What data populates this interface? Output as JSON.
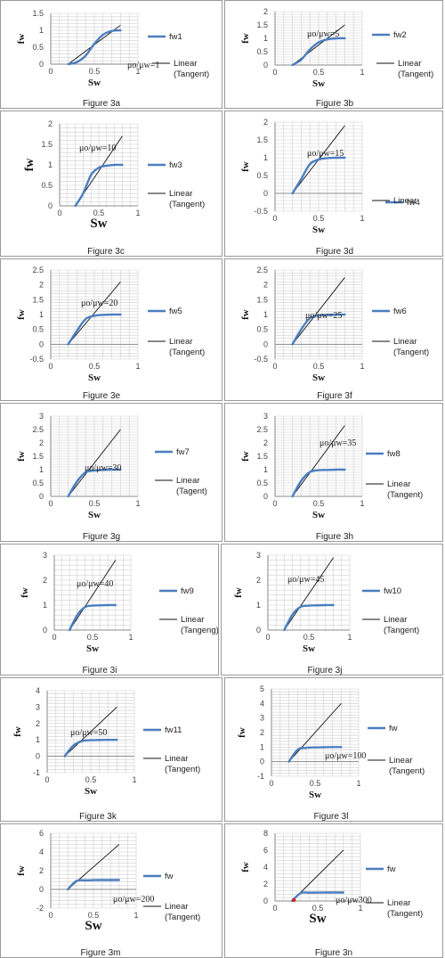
{
  "chart_data": [
    {
      "type": "line",
      "figure": "Figure 3a",
      "ratio_label": "μo/μw=1",
      "xlabel": "Sw",
      "ylabel": "fw",
      "xlim": [
        0,
        1
      ],
      "ylim": [
        0,
        1.5
      ],
      "xticks": [
        0,
        0.5,
        1
      ],
      "yticks": [
        0,
        0.5,
        1,
        1.5
      ],
      "series": [
        {
          "name": "fw1",
          "x": [
            0.2,
            0.3,
            0.4,
            0.5,
            0.6,
            0.7,
            0.8
          ],
          "y": [
            0,
            0.06,
            0.25,
            0.6,
            0.87,
            0.98,
            1.0
          ]
        },
        {
          "name": "Linear (Tangent)",
          "x": [
            0.2,
            0.8
          ],
          "y": [
            0,
            1.15
          ]
        }
      ]
    },
    {
      "type": "line",
      "figure": "Figure 3b",
      "ratio_label": "μo/μw=5",
      "xlabel": "Sw",
      "ylabel": "fw",
      "xlim": [
        0,
        1
      ],
      "ylim": [
        0,
        2
      ],
      "xticks": [
        0,
        0.5,
        1
      ],
      "yticks": [
        0,
        0.5,
        1,
        1.5,
        2
      ],
      "series": [
        {
          "name": "fw2",
          "x": [
            0.2,
            0.3,
            0.4,
            0.5,
            0.6,
            0.7,
            0.8
          ],
          "y": [
            0,
            0.2,
            0.58,
            0.85,
            0.96,
            1.0,
            1.0
          ]
        },
        {
          "name": "Linear (Tangent)",
          "x": [
            0.2,
            0.8
          ],
          "y": [
            0,
            1.5
          ]
        }
      ]
    },
    {
      "type": "line",
      "figure": "Figure 3c",
      "ratio_label": "μo/μw=10",
      "xlabel": "Sw",
      "ylabel": "fw",
      "xlim": [
        0,
        1
      ],
      "ylim": [
        0,
        2
      ],
      "xticks": [
        0,
        0.5,
        1
      ],
      "yticks": [
        0,
        0.5,
        1,
        1.5,
        2
      ],
      "series": [
        {
          "name": "fw3",
          "x": [
            0.2,
            0.3,
            0.4,
            0.5,
            0.6,
            0.7,
            0.8
          ],
          "y": [
            0,
            0.3,
            0.75,
            0.93,
            0.98,
            1.0,
            1.0
          ]
        },
        {
          "name": "Linear (Tangent)",
          "x": [
            0.2,
            0.8
          ],
          "y": [
            0,
            1.7
          ]
        }
      ]
    },
    {
      "type": "line",
      "figure": "Figure 3d",
      "ratio_label": "μo/μw=15",
      "xlabel": "Sw",
      "ylabel": "fw",
      "xlim": [
        0,
        1
      ],
      "ylim": [
        -0.5,
        2
      ],
      "xticks": [
        0,
        0.5,
        1
      ],
      "yticks": [
        -0.5,
        0,
        0.5,
        1,
        1.5,
        2
      ],
      "series": [
        {
          "name": "fw4",
          "x": [
            0.2,
            0.3,
            0.4,
            0.5,
            0.6,
            0.7,
            0.8
          ],
          "y": [
            0,
            0.4,
            0.82,
            0.95,
            0.99,
            1.0,
            1.0
          ]
        },
        {
          "name": "Linear",
          "x": [
            0.2,
            0.8
          ],
          "y": [
            0,
            1.9
          ]
        }
      ]
    },
    {
      "type": "line",
      "figure": "Figure 3e",
      "ratio_label": "μo/μw=20",
      "xlabel": "Sw",
      "ylabel": "fw",
      "xlim": [
        0,
        1
      ],
      "ylim": [
        -0.5,
        2.5
      ],
      "xticks": [
        0,
        0.5,
        1
      ],
      "yticks": [
        -0.5,
        0,
        0.5,
        1,
        1.5,
        2,
        2.5
      ],
      "series": [
        {
          "name": "fw5",
          "x": [
            0.2,
            0.3,
            0.4,
            0.5,
            0.6,
            0.7,
            0.8
          ],
          "y": [
            0,
            0.45,
            0.85,
            0.96,
            0.99,
            1.0,
            1.0
          ]
        },
        {
          "name": "Linear (Tangent)",
          "x": [
            0.2,
            0.8
          ],
          "y": [
            0,
            2.1
          ]
        }
      ]
    },
    {
      "type": "line",
      "figure": "Figure 3f",
      "ratio_label": "μo/μw=25",
      "xlabel": "Sw",
      "ylabel": "fw",
      "xlim": [
        0,
        1
      ],
      "ylim": [
        -0.5,
        2.5
      ],
      "xticks": [
        0,
        0.5,
        1
      ],
      "yticks": [
        -0.5,
        0,
        0.5,
        1,
        1.5,
        2,
        2.5
      ],
      "series": [
        {
          "name": "fw6",
          "x": [
            0.2,
            0.3,
            0.4,
            0.5,
            0.6,
            0.7,
            0.8
          ],
          "y": [
            0,
            0.5,
            0.88,
            0.97,
            0.99,
            1.0,
            1.0
          ]
        },
        {
          "name": "Linear (Tangent)",
          "x": [
            0.2,
            0.8
          ],
          "y": [
            0,
            2.25
          ]
        }
      ]
    },
    {
      "type": "line",
      "figure": "Figure 3g",
      "ratio_label": "μo/μw=30",
      "xlabel": "Sw",
      "ylabel": "fw",
      "xlim": [
        0,
        1
      ],
      "ylim": [
        0,
        3
      ],
      "xticks": [
        0,
        0.5,
        1
      ],
      "yticks": [
        0,
        0.5,
        1,
        1.5,
        2,
        2.5,
        3
      ],
      "series": [
        {
          "name": "fw7",
          "x": [
            0.2,
            0.3,
            0.4,
            0.5,
            0.6,
            0.7,
            0.8
          ],
          "y": [
            0,
            0.55,
            0.9,
            0.97,
            0.99,
            1.0,
            1.0
          ]
        },
        {
          "name": "Linear (Tagent)",
          "x": [
            0.2,
            0.8
          ],
          "y": [
            0,
            2.5
          ]
        }
      ]
    },
    {
      "type": "line",
      "figure": "Figure 3h",
      "ratio_label": "μo/μw=35",
      "xlabel": "Sw",
      "ylabel": "fw",
      "xlim": [
        0,
        1
      ],
      "ylim": [
        0,
        3
      ],
      "xticks": [
        0,
        0.5,
        1
      ],
      "yticks": [
        0,
        0.5,
        1,
        1.5,
        2,
        2.5,
        3
      ],
      "series": [
        {
          "name": "fw8",
          "x": [
            0.2,
            0.3,
            0.4,
            0.5,
            0.6,
            0.7,
            0.8
          ],
          "y": [
            0,
            0.58,
            0.91,
            0.98,
            0.99,
            1.0,
            1.0
          ]
        },
        {
          "name": "Linear (Tangent)",
          "x": [
            0.2,
            0.8
          ],
          "y": [
            0,
            2.65
          ]
        }
      ]
    },
    {
      "type": "line",
      "figure": "Figure 3i",
      "ratio_label": "μo/μw=40",
      "xlabel": "Sw",
      "ylabel": "fw",
      "xlim": [
        0,
        1
      ],
      "ylim": [
        0,
        3
      ],
      "xticks": [
        0,
        0.5,
        1
      ],
      "yticks": [
        0,
        1,
        2,
        3
      ],
      "series": [
        {
          "name": "fw9",
          "x": [
            0.2,
            0.3,
            0.4,
            0.5,
            0.6,
            0.7,
            0.8
          ],
          "y": [
            0,
            0.6,
            0.92,
            0.98,
            0.99,
            1.0,
            1.0
          ]
        },
        {
          "name": "Linear (Tangeng)",
          "x": [
            0.2,
            0.8
          ],
          "y": [
            0,
            2.8
          ]
        }
      ]
    },
    {
      "type": "line",
      "figure": "Figure 3j",
      "ratio_label": "μo/μw=45",
      "xlabel": "Sw",
      "ylabel": "fw",
      "xlim": [
        0,
        1
      ],
      "ylim": [
        0,
        3
      ],
      "xticks": [
        0,
        0.5,
        1
      ],
      "yticks": [
        0,
        1,
        2,
        3
      ],
      "series": [
        {
          "name": "fw10",
          "x": [
            0.2,
            0.3,
            0.4,
            0.5,
            0.6,
            0.7,
            0.8
          ],
          "y": [
            0,
            0.62,
            0.93,
            0.98,
            0.99,
            1.0,
            1.0
          ]
        },
        {
          "name": "Linear (Tangent)",
          "x": [
            0.2,
            0.8
          ],
          "y": [
            0,
            2.9
          ]
        }
      ]
    },
    {
      "type": "line",
      "figure": "Figure 3k",
      "ratio_label": "μo/μw=50",
      "xlabel": "Sw",
      "ylabel": "fw",
      "xlim": [
        0,
        1
      ],
      "ylim": [
        -1,
        4
      ],
      "xticks": [
        0,
        0.5,
        1
      ],
      "yticks": [
        -1,
        0,
        1,
        2,
        3,
        4
      ],
      "series": [
        {
          "name": "fw11",
          "x": [
            0.2,
            0.3,
            0.4,
            0.5,
            0.6,
            0.7,
            0.8
          ],
          "y": [
            0,
            0.65,
            0.93,
            0.98,
            0.99,
            1.0,
            1.0
          ]
        },
        {
          "name": "Linear (Tangent)",
          "x": [
            0.2,
            0.8
          ],
          "y": [
            0,
            3.0
          ]
        }
      ]
    },
    {
      "type": "line",
      "figure": "Figure 3l",
      "ratio_label": "μo/μw=100",
      "xlabel": "Sw",
      "ylabel": "fw",
      "xlim": [
        0,
        1
      ],
      "ylim": [
        -1,
        5
      ],
      "xticks": [
        0,
        0.5,
        1
      ],
      "yticks": [
        -1,
        0,
        1,
        2,
        3,
        4,
        5
      ],
      "series": [
        {
          "name": "fw",
          "x": [
            0.2,
            0.3,
            0.4,
            0.5,
            0.6,
            0.7,
            0.8
          ],
          "y": [
            0,
            0.82,
            0.95,
            0.98,
            0.99,
            1.0,
            1.0
          ]
        },
        {
          "name": "Linear (Tangent)",
          "x": [
            0.2,
            0.8
          ],
          "y": [
            0,
            4.0
          ]
        }
      ]
    },
    {
      "type": "line",
      "figure": "Figure 3m",
      "ratio_label": "μo/μw=200",
      "xlabel": "Sw",
      "ylabel": "fw",
      "xlim": [
        0,
        1
      ],
      "ylim": [
        -2,
        6
      ],
      "xticks": [
        0,
        0.5,
        1
      ],
      "yticks": [
        -2,
        0,
        2,
        4,
        6
      ],
      "series": [
        {
          "name": "fw",
          "x": [
            0.2,
            0.3,
            0.4,
            0.5,
            0.6,
            0.7,
            0.8
          ],
          "y": [
            0,
            0.9,
            0.97,
            0.99,
            1.0,
            1.0,
            1.0
          ]
        },
        {
          "name": "Linear (Tangent)",
          "x": [
            0.2,
            0.8
          ],
          "y": [
            0,
            4.8
          ]
        }
      ]
    },
    {
      "type": "line",
      "figure": "Figure 3n",
      "ratio_label": "μo/μw300",
      "xlabel": "Sw",
      "ylabel": "fw",
      "xlim": [
        0,
        1
      ],
      "ylim": [
        0,
        8
      ],
      "xticks": [
        0,
        0.5,
        1
      ],
      "yticks": [
        0,
        2,
        4,
        6,
        8
      ],
      "series": [
        {
          "name": "fw",
          "x": [
            0.2,
            0.3,
            0.4,
            0.5,
            0.6,
            0.7,
            0.8
          ],
          "y": [
            0,
            0.93,
            0.98,
            0.99,
            1.0,
            1.0,
            1.0
          ]
        },
        {
          "name": "Linear (Tangent)",
          "x": [
            0.2,
            0.8
          ],
          "y": [
            0,
            6.0
          ]
        }
      ]
    }
  ],
  "colors": {
    "fw": "#4a7ebf",
    "tangent": "#111111",
    "grid": "#cfcfcf",
    "axis": "#8a8a8a",
    "marker": "#cc2222"
  }
}
